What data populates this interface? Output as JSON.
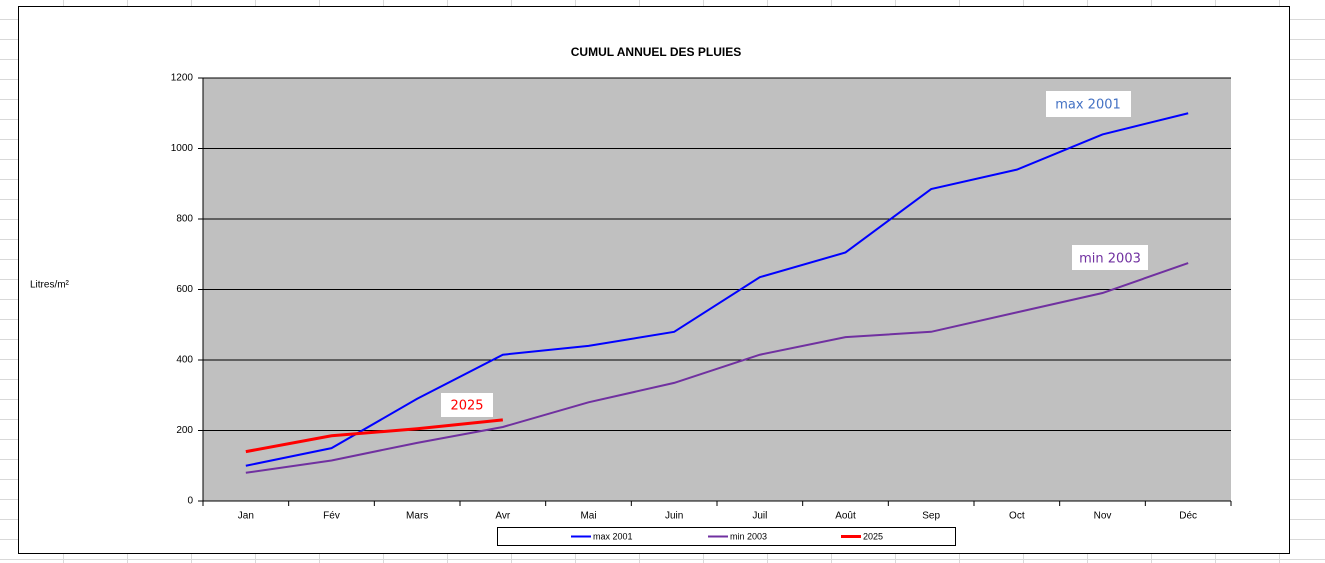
{
  "chart_data": {
    "type": "line",
    "title": "CUMUL ANNUEL DES PLUIES",
    "y_label": "Litres/m²",
    "categories": [
      "Jan",
      "Fév",
      "Mars",
      "Avr",
      "Mai",
      "Juin",
      "Juil",
      "Août",
      "Sep",
      "Oct",
      "Nov",
      "Déc"
    ],
    "series": [
      {
        "name": "max 2001",
        "color": "#0000ff",
        "values": [
          100,
          150,
          290,
          415,
          440,
          480,
          635,
          705,
          885,
          940,
          1040,
          1100
        ]
      },
      {
        "name": "min 2003",
        "color": "#7030a0",
        "values": [
          80,
          115,
          165,
          210,
          280,
          335,
          415,
          465,
          480,
          535,
          590,
          675
        ]
      },
      {
        "name": "2025",
        "color": "#ff0000",
        "values": [
          140,
          185,
          205,
          230,
          null,
          null,
          null,
          null,
          null,
          null,
          null,
          null
        ]
      }
    ],
    "annotations": [
      "max 2001",
      "min 2003",
      "2025"
    ],
    "ylim": [
      0,
      1200
    ],
    "yticks": [
      0,
      200,
      400,
      600,
      800,
      1000,
      1200
    ],
    "grid": true
  }
}
